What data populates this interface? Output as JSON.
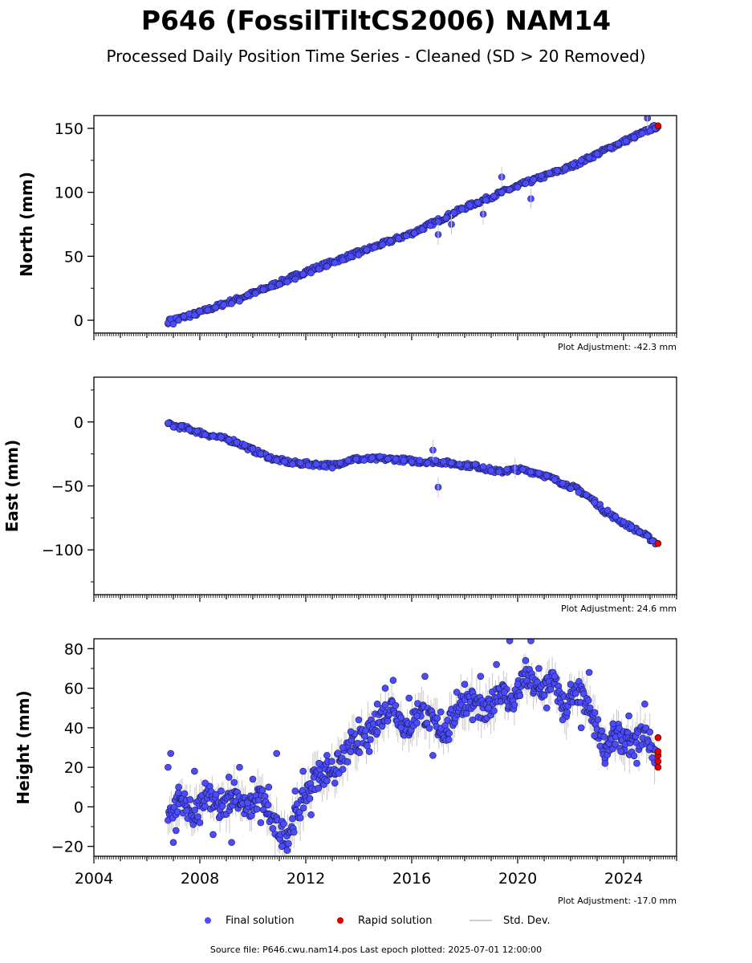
{
  "header": {
    "title": "P646 (FossilTiltCS2006) NAM14",
    "subtitle": "Processed Daily Position Time Series - Cleaned (SD > 20 Removed)"
  },
  "legend": {
    "final_label": "Final solution",
    "rapid_label": "Rapid solution",
    "std_label": "Std. Dev.",
    "final_color": "#4b4bff",
    "rapid_color": "#e00000",
    "std_color": "#c8c8c8"
  },
  "footer": {
    "text": "Source file: P646.cwu.nam14.pos  Last epoch plotted: 2025-07-01 12:00:00"
  },
  "chart_data": [
    {
      "type": "scatter",
      "ylabel": "North (mm)",
      "adjustment": "Plot Adjustment: -42.3 mm",
      "xlim": [
        2004.0,
        2026.0
      ],
      "ylim": [
        -10,
        160
      ],
      "yticks": [
        0,
        50,
        100,
        150
      ],
      "trend": [
        [
          2006.8,
          -1
        ],
        [
          2008.0,
          6
        ],
        [
          2010.0,
          21
        ],
        [
          2012.0,
          38
        ],
        [
          2014.0,
          53
        ],
        [
          2016.0,
          68
        ],
        [
          2018.0,
          88
        ],
        [
          2020.0,
          105
        ],
        [
          2022.0,
          120
        ],
        [
          2023.5,
          135
        ],
        [
          2025.3,
          152
        ]
      ],
      "final_series": [
        [
          2006.8,
          -2
        ],
        [
          2006.9,
          1
        ],
        [
          2007.0,
          -3
        ],
        [
          2007.1,
          2
        ],
        [
          2007.2,
          0
        ],
        [
          2007.4,
          3
        ],
        [
          2007.6,
          5
        ],
        [
          2007.8,
          4
        ],
        [
          2008.0,
          7
        ],
        [
          2008.3,
          8
        ],
        [
          2008.6,
          10
        ],
        [
          2008.9,
          12
        ],
        [
          2009.2,
          13
        ],
        [
          2009.5,
          15
        ],
        [
          2009.8,
          20
        ],
        [
          2010.1,
          21
        ],
        [
          2010.4,
          24
        ],
        [
          2010.7,
          26
        ],
        [
          2011.0,
          28
        ],
        [
          2011.3,
          30
        ],
        [
          2011.6,
          32
        ],
        [
          2011.9,
          36
        ],
        [
          2012.2,
          37
        ],
        [
          2012.5,
          40
        ],
        [
          2012.8,
          42
        ],
        [
          2013.1,
          45
        ],
        [
          2013.4,
          47
        ],
        [
          2013.7,
          50
        ],
        [
          2014.0,
          51
        ],
        [
          2014.3,
          55
        ],
        [
          2014.6,
          57
        ],
        [
          2014.9,
          59
        ],
        [
          2015.2,
          62
        ],
        [
          2015.5,
          64
        ],
        [
          2015.8,
          66
        ],
        [
          2016.1,
          68
        ],
        [
          2016.4,
          71
        ],
        [
          2016.7,
          74
        ],
        [
          2017.0,
          77
        ],
        [
          2017.3,
          80
        ],
        [
          2017.6,
          84
        ],
        [
          2017.9,
          87
        ],
        [
          2018.2,
          90
        ],
        [
          2018.5,
          92
        ],
        [
          2018.8,
          94
        ],
        [
          2019.1,
          97
        ],
        [
          2019.4,
          100
        ],
        [
          2019.7,
          102
        ],
        [
          2020.0,
          104
        ],
        [
          2020.3,
          107
        ],
        [
          2020.6,
          110
        ],
        [
          2020.9,
          113
        ],
        [
          2021.2,
          115
        ],
        [
          2021.5,
          117
        ],
        [
          2021.8,
          119
        ],
        [
          2022.1,
          122
        ],
        [
          2022.4,
          125
        ],
        [
          2022.7,
          127
        ],
        [
          2023.0,
          130
        ],
        [
          2023.5,
          135
        ],
        [
          2023.8,
          138
        ],
        [
          2024.1,
          140
        ],
        [
          2024.4,
          143
        ],
        [
          2024.7,
          146
        ],
        [
          2025.0,
          148
        ],
        [
          2025.2,
          150
        ]
      ],
      "rapid_series": [
        [
          2025.3,
          152
        ]
      ],
      "outliers": [
        [
          2017.0,
          67
        ],
        [
          2017.5,
          75
        ],
        [
          2018.7,
          83
        ],
        [
          2019.4,
          112
        ],
        [
          2020.5,
          95
        ],
        [
          2024.9,
          158
        ]
      ]
    },
    {
      "type": "scatter",
      "ylabel": "East (mm)",
      "adjustment": "Plot Adjustment: 24.6 mm",
      "xlim": [
        2004.0,
        2026.0
      ],
      "ylim": [
        -135,
        35
      ],
      "yticks": [
        0,
        -50,
        -100
      ],
      "trend": [
        [
          2006.8,
          -2
        ],
        [
          2007.5,
          -5
        ],
        [
          2008.3,
          -10
        ],
        [
          2009.3,
          -15
        ],
        [
          2010.0,
          -22
        ],
        [
          2010.8,
          -29
        ],
        [
          2011.5,
          -32
        ],
        [
          2012.3,
          -33
        ],
        [
          2013.0,
          -34
        ],
        [
          2013.8,
          -29
        ],
        [
          2014.5,
          -29
        ],
        [
          2015.3,
          -29
        ],
        [
          2016.3,
          -31
        ],
        [
          2017.0,
          -31
        ],
        [
          2017.7,
          -33
        ],
        [
          2018.5,
          -35
        ],
        [
          2019.3,
          -39
        ],
        [
          2020.0,
          -37
        ],
        [
          2020.8,
          -40
        ],
        [
          2021.5,
          -46
        ],
        [
          2022.3,
          -53
        ],
        [
          2022.9,
          -62
        ],
        [
          2023.3,
          -70
        ],
        [
          2024.0,
          -79
        ],
        [
          2024.7,
          -87
        ],
        [
          2025.2,
          -94
        ]
      ],
      "final_series": [
        [
          2006.8,
          -1
        ],
        [
          2007.0,
          -4
        ],
        [
          2007.3,
          -3
        ],
        [
          2007.6,
          -6
        ],
        [
          2007.9,
          -7
        ],
        [
          2008.2,
          -10
        ],
        [
          2008.5,
          -11
        ],
        [
          2008.8,
          -12
        ],
        [
          2009.1,
          -14
        ],
        [
          2009.4,
          -16
        ],
        [
          2009.7,
          -18
        ],
        [
          2010.0,
          -21
        ],
        [
          2010.3,
          -25
        ],
        [
          2010.6,
          -28
        ],
        [
          2010.9,
          -30
        ],
        [
          2011.2,
          -31
        ],
        [
          2011.5,
          -33
        ],
        [
          2011.8,
          -32
        ],
        [
          2012.1,
          -34
        ],
        [
          2012.4,
          -33
        ],
        [
          2012.7,
          -34
        ],
        [
          2013.0,
          -36
        ],
        [
          2013.3,
          -32
        ],
        [
          2013.6,
          -30
        ],
        [
          2013.9,
          -29
        ],
        [
          2014.2,
          -30
        ],
        [
          2014.5,
          -28
        ],
        [
          2014.8,
          -27
        ],
        [
          2015.1,
          -29
        ],
        [
          2015.4,
          -29
        ],
        [
          2015.7,
          -30
        ],
        [
          2016.0,
          -31
        ],
        [
          2016.3,
          -30
        ],
        [
          2016.6,
          -32
        ],
        [
          2016.9,
          -30
        ],
        [
          2017.2,
          -31
        ],
        [
          2017.5,
          -32
        ],
        [
          2017.8,
          -33
        ],
        [
          2018.1,
          -34
        ],
        [
          2018.4,
          -33
        ],
        [
          2018.7,
          -35
        ],
        [
          2019.0,
          -38
        ],
        [
          2019.3,
          -39
        ],
        [
          2019.6,
          -37
        ],
        [
          2019.9,
          -38
        ],
        [
          2020.2,
          -37
        ],
        [
          2020.5,
          -39
        ],
        [
          2020.8,
          -40
        ],
        [
          2021.1,
          -42
        ],
        [
          2021.4,
          -45
        ],
        [
          2021.7,
          -48
        ],
        [
          2022.0,
          -52
        ],
        [
          2022.3,
          -55
        ],
        [
          2022.6,
          -57
        ],
        [
          2022.9,
          -63
        ],
        [
          2023.4,
          -69
        ],
        [
          2023.7,
          -74
        ],
        [
          2024.0,
          -78
        ],
        [
          2024.3,
          -82
        ],
        [
          2024.6,
          -86
        ],
        [
          2024.9,
          -89
        ],
        [
          2025.1,
          -93
        ]
      ],
      "rapid_series": [
        [
          2025.3,
          -95
        ]
      ],
      "outliers": [
        [
          2016.8,
          -22
        ],
        [
          2017.0,
          -51
        ],
        [
          2019.9,
          -36
        ]
      ]
    },
    {
      "type": "scatter",
      "ylabel": "Height (mm)",
      "adjustment": "Plot Adjustment: -17.0 mm",
      "xlim": [
        2004.0,
        2026.0
      ],
      "ylim": [
        -25,
        85
      ],
      "yticks": [
        -20,
        0,
        20,
        40,
        60,
        80
      ],
      "trend": [
        [
          2006.8,
          -4
        ],
        [
          2007.3,
          4
        ],
        [
          2007.8,
          -5
        ],
        [
          2008.3,
          6
        ],
        [
          2008.8,
          -3
        ],
        [
          2009.3,
          8
        ],
        [
          2009.8,
          -2
        ],
        [
          2010.3,
          6
        ],
        [
          2010.8,
          -10
        ],
        [
          2011.3,
          -14
        ],
        [
          2011.8,
          0
        ],
        [
          2012.3,
          14
        ],
        [
          2012.8,
          18
        ],
        [
          2013.3,
          22
        ],
        [
          2013.8,
          32
        ],
        [
          2014.3,
          35
        ],
        [
          2014.8,
          45
        ],
        [
          2015.3,
          52
        ],
        [
          2015.8,
          38
        ],
        [
          2016.3,
          50
        ],
        [
          2016.8,
          42
        ],
        [
          2017.3,
          38
        ],
        [
          2017.8,
          52
        ],
        [
          2018.3,
          54
        ],
        [
          2018.8,
          46
        ],
        [
          2019.3,
          60
        ],
        [
          2019.8,
          52
        ],
        [
          2020.3,
          66
        ],
        [
          2020.8,
          58
        ],
        [
          2021.3,
          64
        ],
        [
          2021.8,
          50
        ],
        [
          2022.3,
          58
        ],
        [
          2022.8,
          46
        ],
        [
          2023.3,
          30
        ],
        [
          2023.8,
          36
        ],
        [
          2024.3,
          30
        ],
        [
          2024.8,
          38
        ],
        [
          2025.2,
          26
        ]
      ],
      "final_series": [
        [
          2006.8,
          20
        ],
        [
          2006.9,
          27
        ],
        [
          2007.0,
          -18
        ],
        [
          2007.1,
          -12
        ],
        [
          2007.2,
          10
        ],
        [
          2007.5,
          -2
        ],
        [
          2007.8,
          18
        ],
        [
          2008.0,
          -8
        ],
        [
          2008.2,
          12
        ],
        [
          2008.5,
          -14
        ],
        [
          2008.8,
          8
        ],
        [
          2009.1,
          15
        ],
        [
          2009.2,
          -18
        ],
        [
          2009.5,
          20
        ],
        [
          2009.8,
          2
        ],
        [
          2010.0,
          14
        ],
        [
          2010.3,
          -8
        ],
        [
          2010.6,
          10
        ],
        [
          2010.9,
          27
        ],
        [
          2011.1,
          -20
        ],
        [
          2011.3,
          -22
        ],
        [
          2011.6,
          8
        ],
        [
          2011.9,
          18
        ],
        [
          2012.2,
          -4
        ],
        [
          2012.5,
          22
        ],
        [
          2012.8,
          26
        ],
        [
          2013.1,
          12
        ],
        [
          2013.4,
          30
        ],
        [
          2013.7,
          38
        ],
        [
          2014.0,
          44
        ],
        [
          2014.4,
          28
        ],
        [
          2014.7,
          52
        ],
        [
          2015.0,
          60
        ],
        [
          2015.3,
          64
        ],
        [
          2015.6,
          40
        ],
        [
          2015.9,
          55
        ],
        [
          2016.2,
          46
        ],
        [
          2016.5,
          66
        ],
        [
          2016.8,
          26
        ],
        [
          2017.1,
          48
        ],
        [
          2017.4,
          34
        ],
        [
          2017.7,
          58
        ],
        [
          2018.0,
          62
        ],
        [
          2018.3,
          44
        ],
        [
          2018.6,
          66
        ],
        [
          2018.9,
          50
        ],
        [
          2019.2,
          72
        ],
        [
          2019.5,
          58
        ],
        [
          2019.7,
          84
        ],
        [
          2020.0,
          62
        ],
        [
          2020.3,
          74
        ],
        [
          2020.5,
          84
        ],
        [
          2020.8,
          70
        ],
        [
          2021.1,
          50
        ],
        [
          2021.4,
          66
        ],
        [
          2021.7,
          44
        ],
        [
          2022.0,
          62
        ],
        [
          2022.4,
          40
        ],
        [
          2022.7,
          68
        ],
        [
          2022.9,
          36
        ],
        [
          2023.3,
          22
        ],
        [
          2023.6,
          42
        ],
        [
          2023.9,
          28
        ],
        [
          2024.2,
          46
        ],
        [
          2024.5,
          22
        ],
        [
          2024.8,
          52
        ],
        [
          2025.0,
          30
        ]
      ],
      "rapid_series": [
        [
          2025.3,
          20
        ],
        [
          2025.3,
          23
        ],
        [
          2025.3,
          26
        ],
        [
          2025.3,
          28
        ],
        [
          2025.3,
          35
        ]
      ],
      "outliers": []
    }
  ],
  "x_axis": {
    "tick_labels": [
      "2004",
      "2008",
      "2012",
      "2016",
      "2020",
      "2024"
    ]
  }
}
